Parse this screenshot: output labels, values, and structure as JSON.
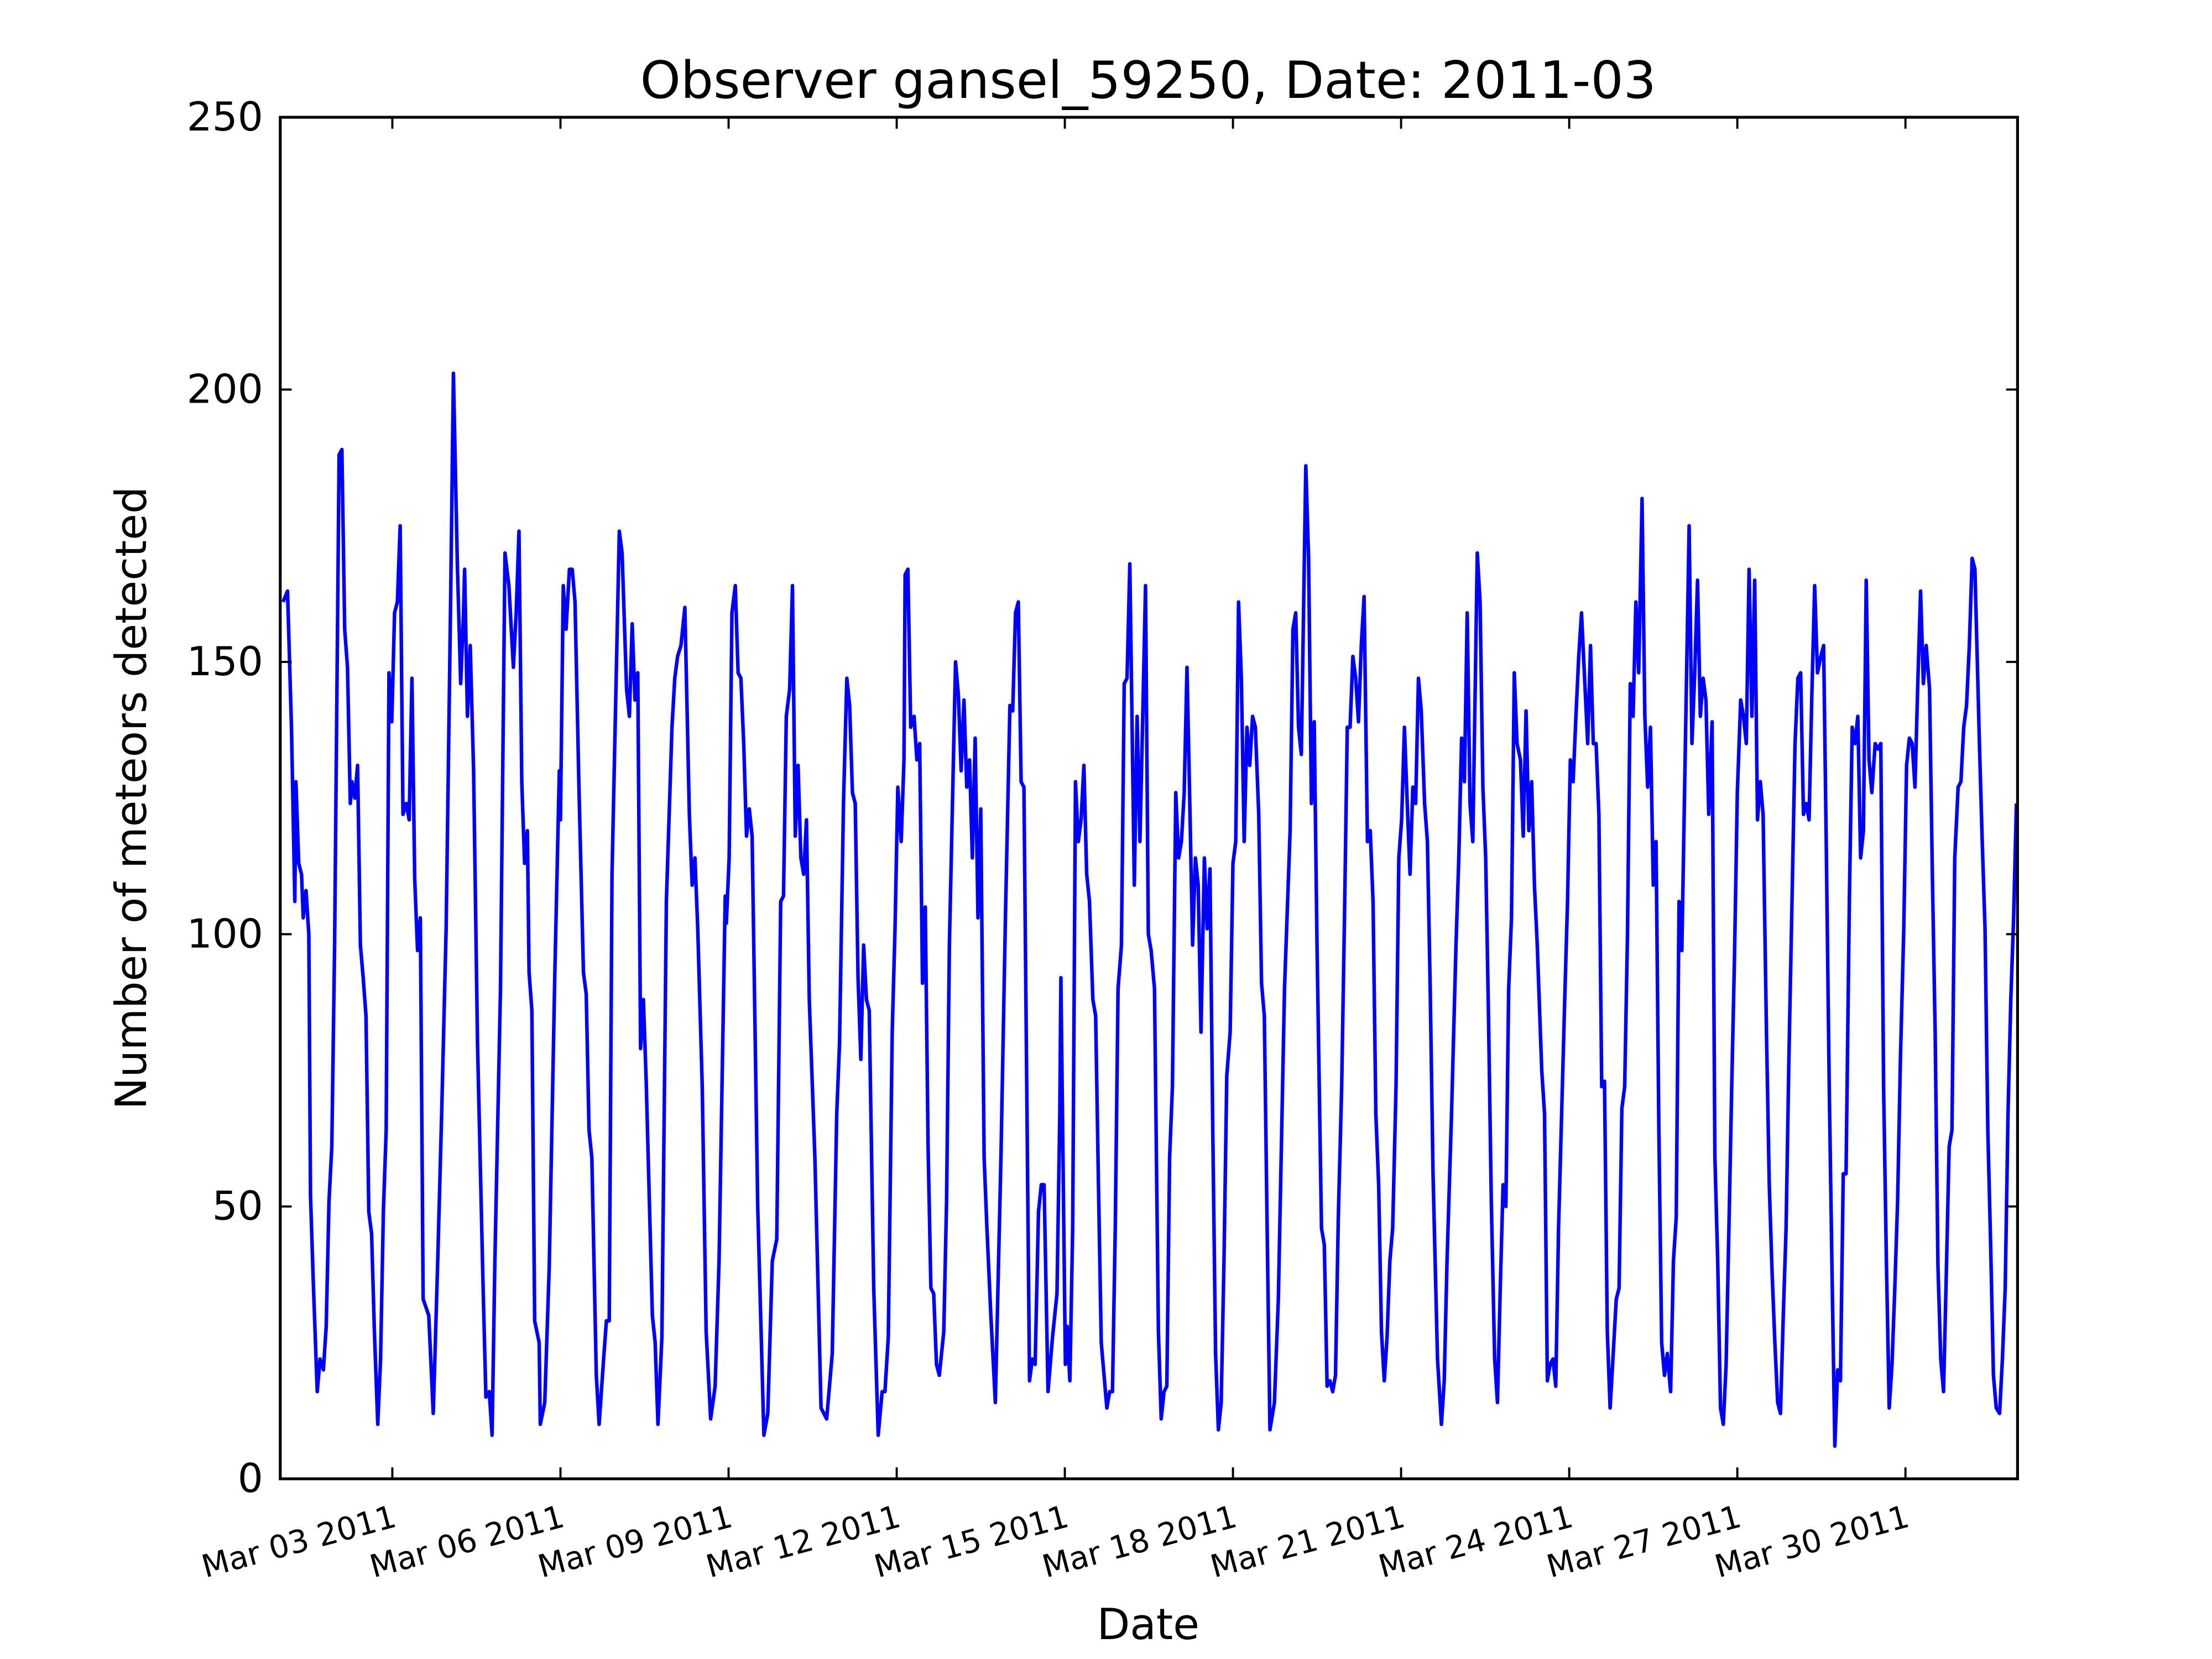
{
  "chart_data": {
    "type": "line",
    "title": "Observer gansel_59250, Date: 2011-03",
    "xlabel": "Date",
    "ylabel": "Number of meteors detected",
    "color": "#0000ff",
    "xlim": [
      1,
      32
    ],
    "xticks": [
      {
        "value": 3,
        "label": "Mar 03 2011"
      },
      {
        "value": 6,
        "label": "Mar 06 2011"
      },
      {
        "value": 9,
        "label": "Mar 09 2011"
      },
      {
        "value": 12,
        "label": "Mar 12 2011"
      },
      {
        "value": 15,
        "label": "Mar 15 2011"
      },
      {
        "value": 18,
        "label": "Mar 18 2011"
      },
      {
        "value": 21,
        "label": "Mar 21 2011"
      },
      {
        "value": 24,
        "label": "Mar 24 2011"
      },
      {
        "value": 27,
        "label": "Mar 27 2011"
      },
      {
        "value": 30,
        "label": "Mar 30 2011"
      }
    ],
    "ylim": [
      0,
      250
    ],
    "yticks": [
      0,
      50,
      100,
      150,
      200,
      250
    ],
    "x": [
      1.05,
      1.13,
      1.2,
      1.26,
      1.28,
      1.33,
      1.38,
      1.41,
      1.46,
      1.51,
      1.54,
      1.59,
      1.66,
      1.71,
      1.77,
      1.82,
      1.87,
      1.92,
      1.97,
      2.05,
      2.1,
      2.15,
      2.2,
      2.25,
      2.28,
      2.33,
      2.38,
      2.43,
      2.48,
      2.53,
      2.58,
      2.63,
      2.68,
      2.74,
      2.79,
      2.84,
      2.89,
      2.94,
      2.99,
      3.04,
      3.09,
      3.14,
      3.19,
      3.25,
      3.3,
      3.35,
      3.4,
      3.45,
      3.5,
      3.55,
      3.65,
      3.73,
      3.81,
      3.88,
      3.96,
      4.04,
      4.09,
      4.16,
      4.22,
      4.27,
      4.29,
      4.34,
      4.39,
      4.45,
      4.52,
      4.62,
      4.67,
      4.73,
      4.78,
      4.83,
      4.93,
      5.01,
      5.08,
      5.16,
      5.21,
      5.26,
      5.31,
      5.36,
      5.41,
      5.44,
      5.49,
      5.54,
      5.62,
      5.64,
      5.72,
      5.8,
      5.9,
      5.98,
      6.0,
      6.05,
      6.1,
      6.16,
      6.21,
      6.26,
      6.33,
      6.41,
      6.46,
      6.51,
      6.56,
      6.64,
      6.69,
      6.77,
      6.82,
      6.87,
      6.92,
      7.05,
      7.1,
      7.18,
      7.23,
      7.28,
      7.33,
      7.38,
      7.43,
      7.48,
      7.53,
      7.64,
      7.69,
      7.74,
      7.81,
      7.89,
      7.99,
      8.04,
      8.09,
      8.15,
      8.22,
      8.3,
      8.35,
      8.4,
      8.45,
      8.53,
      8.6,
      8.68,
      8.76,
      8.83,
      8.94,
      8.96,
      9.01,
      9.06,
      9.12,
      9.17,
      9.22,
      9.27,
      9.32,
      9.37,
      9.42,
      9.52,
      9.63,
      9.7,
      9.78,
      9.86,
      9.93,
      9.98,
      10.03,
      10.09,
      10.14,
      10.19,
      10.24,
      10.29,
      10.34,
      10.39,
      10.44,
      10.54,
      10.65,
      10.75,
      10.85,
      10.93,
      10.98,
      11.05,
      11.11,
      11.16,
      11.21,
      11.26,
      11.31,
      11.36,
      11.41,
      11.46,
      11.51,
      11.59,
      11.67,
      11.74,
      11.79,
      11.85,
      11.92,
      11.97,
      12.02,
      12.08,
      12.13,
      12.15,
      12.2,
      12.25,
      12.31,
      12.36,
      12.41,
      12.46,
      12.51,
      12.56,
      12.61,
      12.66,
      12.71,
      12.76,
      12.84,
      12.89,
      12.94,
      13.05,
      13.1,
      13.15,
      13.2,
      13.25,
      13.3,
      13.35,
      13.4,
      13.45,
      13.5,
      13.56,
      13.61,
      13.68,
      13.76,
      13.86,
      13.94,
      14.02,
      14.07,
      14.12,
      14.17,
      14.22,
      14.27,
      14.35,
      14.37,
      14.42,
      14.47,
      14.53,
      14.58,
      14.63,
      14.7,
      14.78,
      14.86,
      14.91,
      14.93,
      15.01,
      15.04,
      15.09,
      15.14,
      15.19,
      15.24,
      15.29,
      15.34,
      15.39,
      15.44,
      15.5,
      15.55,
      15.6,
      15.65,
      15.7,
      15.75,
      15.8,
      15.85,
      15.9,
      15.95,
      16.01,
      16.06,
      16.11,
      16.16,
      16.24,
      16.29,
      16.34,
      16.39,
      16.44,
      16.49,
      16.54,
      16.6,
      16.67,
      16.72,
      16.77,
      16.82,
      16.87,
      16.92,
      16.98,
      17.03,
      17.08,
      17.13,
      17.18,
      17.23,
      17.28,
      17.33,
      17.38,
      17.43,
      17.49,
      17.54,
      17.59,
      17.64,
      17.69,
      17.74,
      17.79,
      17.84,
      17.89,
      17.95,
      18.0,
      18.05,
      18.1,
      18.15,
      18.2,
      18.25,
      18.3,
      18.35,
      18.4,
      18.46,
      18.51,
      18.56,
      18.61,
      18.66,
      18.74,
      18.81,
      18.92,
      19.02,
      19.07,
      19.12,
      19.17,
      19.22,
      19.3,
      19.35,
      19.4,
      19.45,
      19.5,
      19.58,
      19.63,
      19.68,
      19.73,
      19.78,
      19.83,
      19.88,
      19.94,
      19.99,
      20.04,
      20.09,
      20.14,
      20.19,
      20.24,
      20.29,
      20.34,
      20.4,
      20.45,
      20.5,
      20.55,
      20.6,
      20.65,
      20.7,
      20.75,
      20.8,
      20.85,
      20.91,
      20.96,
      21.01,
      21.06,
      21.11,
      21.16,
      21.21,
      21.26,
      21.31,
      21.36,
      21.42,
      21.47,
      21.52,
      21.57,
      21.65,
      21.72,
      21.77,
      21.82,
      21.9,
      21.98,
      22.03,
      22.08,
      22.13,
      22.18,
      22.23,
      22.28,
      22.36,
      22.41,
      22.46,
      22.51,
      22.56,
      22.61,
      22.67,
      22.72,
      22.77,
      22.82,
      22.87,
      22.92,
      22.97,
      23.02,
      23.07,
      23.13,
      23.18,
      23.23,
      23.28,
      23.33,
      23.38,
      23.43,
      23.51,
      23.56,
      23.61,
      23.66,
      23.71,
      23.76,
      23.81,
      23.92,
      23.97,
      24.02,
      24.07,
      24.12,
      24.17,
      24.22,
      24.27,
      24.33,
      24.38,
      24.43,
      24.48,
      24.53,
      24.58,
      24.63,
      24.68,
      24.73,
      24.78,
      24.84,
      24.89,
      24.94,
      24.99,
      25.04,
      25.09,
      25.14,
      25.19,
      25.24,
      25.3,
      25.35,
      25.4,
      25.45,
      25.5,
      25.55,
      25.6,
      25.65,
      25.7,
      25.75,
      25.81,
      25.86,
      25.91,
      25.96,
      26.01,
      26.06,
      26.14,
      26.19,
      26.24,
      26.29,
      26.34,
      26.39,
      26.44,
      26.49,
      26.55,
      26.6,
      26.65,
      26.7,
      26.75,
      26.8,
      26.85,
      26.9,
      26.95,
      27.0,
      27.06,
      27.11,
      27.16,
      27.21,
      27.26,
      27.31,
      27.36,
      27.41,
      27.46,
      27.52,
      27.57,
      27.62,
      27.67,
      27.72,
      27.77,
      27.82,
      27.87,
      27.92,
      27.97,
      28.03,
      28.08,
      28.13,
      28.18,
      28.23,
      28.28,
      28.33,
      28.38,
      28.43,
      28.49,
      28.54,
      28.59,
      28.64,
      28.69,
      28.74,
      28.79,
      28.84,
      28.89,
      28.94,
      29.0,
      29.05,
      29.1,
      29.15,
      29.2,
      29.25,
      29.3,
      29.35,
      29.4,
      29.46,
      29.51,
      29.56,
      29.61,
      29.66,
      29.71,
      29.76,
      29.81,
      29.86,
      29.91,
      29.97,
      30.02,
      30.07,
      30.12,
      30.17,
      30.22,
      30.27,
      30.32,
      30.37,
      30.43,
      30.48,
      30.53,
      30.58,
      30.63,
      30.68,
      30.73,
      30.78,
      30.83,
      30.88,
      30.94,
      30.99,
      31.04,
      31.09,
      31.14,
      31.19,
      31.24,
      31.32,
      31.37,
      31.42,
      31.47,
      31.52,
      31.57,
      31.62,
      31.68,
      31.73,
      31.78,
      31.83,
      31.88,
      31.93,
      31.98
    ],
    "values": [
      161,
      163,
      138,
      106,
      128,
      113,
      111,
      103,
      108,
      100,
      52,
      36,
      16,
      22,
      20,
      28,
      51,
      61,
      98,
      188,
      189,
      156,
      149,
      124,
      128,
      125,
      131,
      98,
      92,
      85,
      49,
      45,
      27,
      10,
      22,
      49,
      64,
      148,
      139,
      159,
      161,
      175,
      122,
      124,
      121,
      147,
      110,
      97,
      103,
      33,
      30,
      12,
      40,
      67,
      101,
      161,
      203,
      168,
      146,
      159,
      167,
      140,
      153,
      130,
      80,
      35,
      15,
      16,
      8,
      40,
      90,
      170,
      164,
      149,
      159,
      174,
      128,
      113,
      119,
      93,
      86,
      29,
      25,
      10,
      14,
      39,
      93,
      130,
      121,
      164,
      156,
      167,
      167,
      161,
      127,
      93,
      89,
      64,
      59,
      19,
      10,
      22,
      29,
      29,
      111,
      174,
      170,
      145,
      140,
      157,
      143,
      148,
      79,
      88,
      73,
      30,
      25,
      10,
      26,
      106,
      138,
      147,
      151,
      153,
      160,
      122,
      109,
      114,
      101,
      72,
      27,
      11,
      17,
      40,
      107,
      102,
      114,
      159,
      164,
      148,
      147,
      135,
      118,
      123,
      118,
      50,
      8,
      12,
      40,
      44,
      106,
      107,
      140,
      145,
      164,
      118,
      131,
      114,
      111,
      121,
      88,
      59,
      13,
      11,
      23,
      67,
      80,
      124,
      147,
      142,
      126,
      124,
      92,
      77,
      98,
      88,
      86,
      35,
      8,
      16,
      16,
      26,
      82,
      101,
      127,
      117,
      132,
      166,
      167,
      138,
      140,
      132,
      135,
      91,
      105,
      61,
      35,
      34,
      21,
      19,
      27,
      51,
      98,
      150,
      144,
      130,
      143,
      127,
      132,
      114,
      136,
      103,
      123,
      59,
      46,
      30,
      14,
      59,
      103,
      142,
      141,
      159,
      161,
      128,
      127,
      40,
      18,
      22,
      21,
      49,
      54,
      54,
      16,
      26,
      34,
      67,
      92,
      21,
      28,
      18,
      46,
      128,
      117,
      121,
      131,
      111,
      106,
      88,
      85,
      54,
      25,
      19,
      13,
      16,
      16,
      46,
      90,
      98,
      146,
      147,
      168,
      109,
      140,
      117,
      140,
      164,
      100,
      97,
      90,
      27,
      11,
      16,
      17,
      59,
      72,
      126,
      114,
      117,
      126,
      149,
      124,
      98,
      114,
      109,
      82,
      114,
      101,
      112,
      64,
      23,
      9,
      14,
      40,
      74,
      82,
      113,
      117,
      161,
      147,
      117,
      138,
      131,
      140,
      138,
      122,
      91,
      85,
      46,
      9,
      14,
      33,
      90,
      119,
      156,
      159,
      138,
      133,
      186,
      169,
      124,
      139,
      98,
      46,
      43,
      17,
      18,
      16,
      19,
      48,
      72,
      103,
      138,
      138,
      151,
      147,
      139,
      153,
      162,
      117,
      119,
      106,
      67,
      54,
      27,
      18,
      26,
      40,
      46,
      72,
      114,
      121,
      138,
      124,
      111,
      127,
      124,
      147,
      141,
      124,
      117,
      90,
      56,
      22,
      10,
      18,
      40,
      67,
      98,
      114,
      136,
      128,
      159,
      124,
      117,
      170,
      161,
      127,
      114,
      85,
      51,
      22,
      14,
      35,
      54,
      50,
      90,
      103,
      148,
      135,
      132,
      118,
      141,
      119,
      128,
      109,
      98,
      75,
      67,
      18,
      21,
      22,
      17,
      46,
      88,
      106,
      132,
      128,
      140,
      151,
      159,
      148,
      135,
      153,
      135,
      135,
      122,
      72,
      73,
      27,
      13,
      22,
      33,
      35,
      68,
      72,
      100,
      146,
      140,
      161,
      148,
      180,
      140,
      127,
      138,
      109,
      117,
      64,
      25,
      19,
      23,
      16,
      40,
      48,
      106,
      97,
      127,
      175,
      135,
      148,
      165,
      140,
      147,
      143,
      122,
      139,
      59,
      40,
      13,
      10,
      21,
      46,
      72,
      96,
      126,
      143,
      140,
      135,
      167,
      140,
      165,
      121,
      128,
      122,
      82,
      54,
      38,
      25,
      14,
      12,
      30,
      46,
      77,
      103,
      135,
      147,
      148,
      122,
      124,
      121,
      144,
      164,
      148,
      151,
      153,
      114,
      72,
      38,
      6,
      20,
      18,
      56,
      56,
      107,
      138,
      135,
      140,
      114,
      119,
      165,
      132,
      126,
      135,
      134,
      135,
      72,
      40,
      13,
      21,
      35,
      51,
      77,
      101,
      131,
      136,
      135,
      127,
      146,
      163,
      146,
      153,
      145,
      111,
      82,
      39,
      22,
      16,
      38,
      61,
      64,
      114,
      127,
      128,
      138,
      142,
      153,
      169,
      167,
      135,
      117,
      101,
      64,
      43,
      19,
      13,
      12,
      22,
      35,
      67,
      88,
      103,
      124
    ]
  }
}
